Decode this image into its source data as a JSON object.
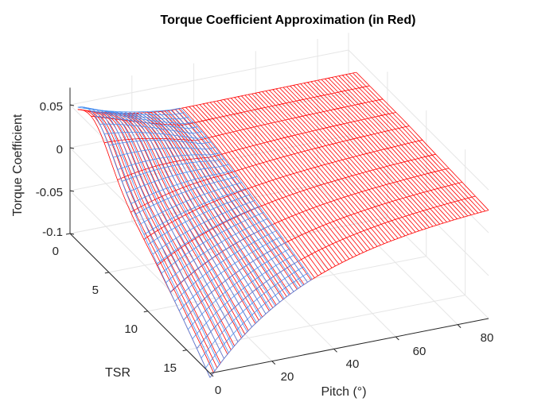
{
  "chart_data": {
    "type": "surface3d",
    "title": "Torque Coefficient Approximation (in Red)",
    "xlabel": "Pitch (°)",
    "ylabel": "TSR",
    "zlabel": "Torque Coefficient",
    "x_ticks": [
      "0",
      "20",
      "40",
      "60",
      "80"
    ],
    "y_ticks": [
      "0",
      "5",
      "10",
      "15"
    ],
    "z_ticks": [
      "0.05",
      "0",
      "-0.05",
      "-0.1"
    ],
    "xlim": [
      0,
      90
    ],
    "ylim": [
      0,
      18
    ],
    "zlim": [
      -0.1,
      0.07
    ],
    "grid": true,
    "series": [
      {
        "color": "#ff0000",
        "pitch_range": [
          0,
          90
        ],
        "tsr_range": [
          1,
          18
        ]
      },
      {
        "color": "#4a8ff0",
        "pitch_range": [
          0,
          33
        ],
        "tsr_range": [
          1,
          18
        ]
      }
    ]
  }
}
